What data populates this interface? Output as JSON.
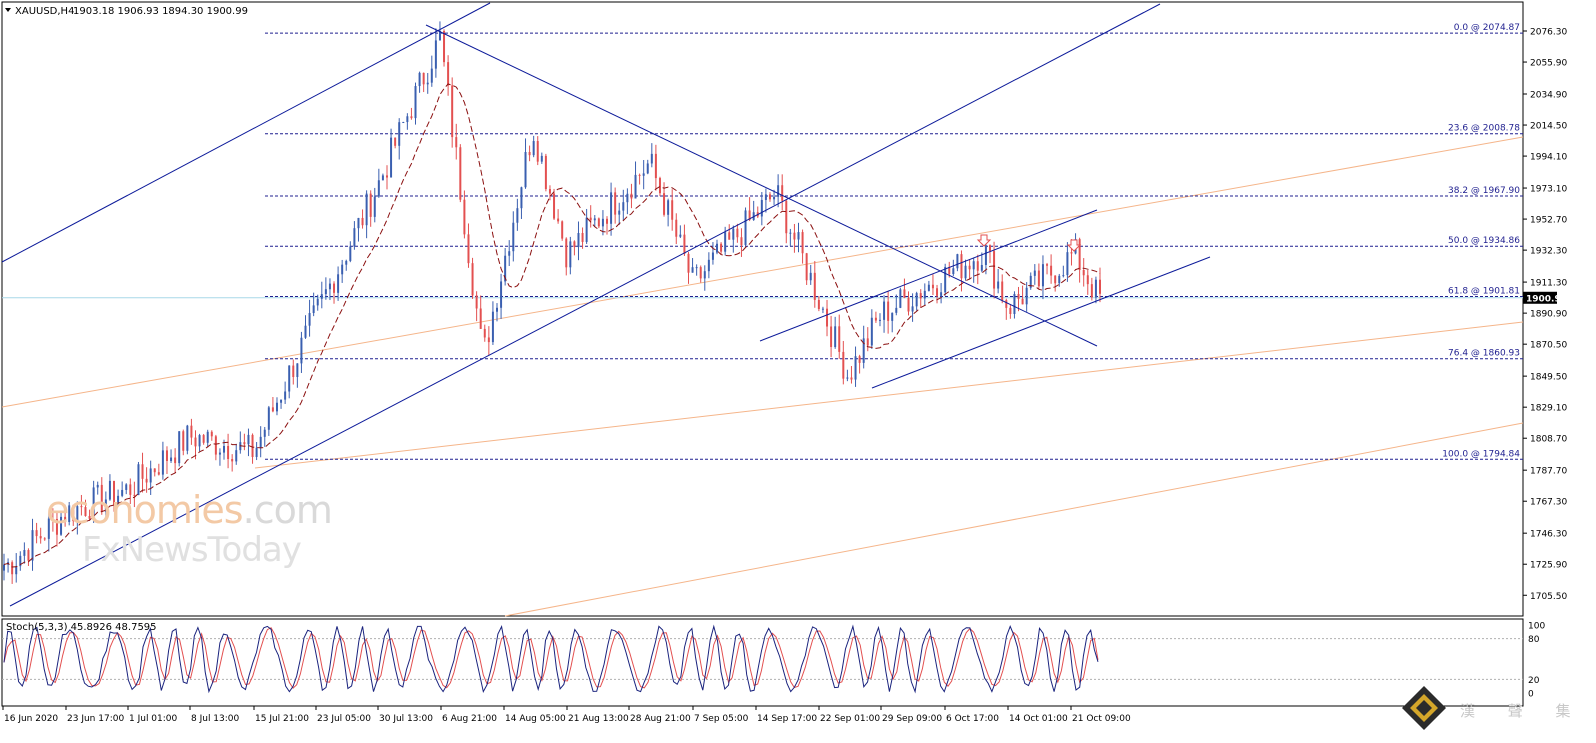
{
  "header": {
    "symbol": "XAUUSD,H4",
    "ohlc": "1903.18 1906.93 1894.30 1900.99"
  },
  "chart_data": {
    "type": "candlestick",
    "symbol": "XAUUSD",
    "timeframe": "H4",
    "last_price": "1900.99",
    "price_axis_labels": [
      "2076.30",
      "2055.90",
      "2034.90",
      "2014.50",
      "1994.10",
      "1973.10",
      "1952.70",
      "1932.30",
      "1911.30",
      "1890.90",
      "1870.50",
      "1849.50",
      "1829.10",
      "1808.70",
      "1787.70",
      "1767.30",
      "1746.30",
      "1725.90",
      "1705.50"
    ],
    "time_axis_labels": [
      "16 Jun 2020",
      "23 Jun 17:00",
      "1 Jul 01:00",
      "8 Jul 13:00",
      "15 Jul 21:00",
      "23 Jul 05:00",
      "30 Jul 13:00",
      "6 Aug 21:00",
      "14 Aug 05:00",
      "21 Aug 13:00",
      "28 Aug 21:00",
      "7 Sep 05:00",
      "14 Sep 17:00",
      "22 Sep 01:00",
      "29 Sep 09:00",
      "6 Oct 17:00",
      "14 Oct 01:00",
      "21 Oct 09:00"
    ],
    "fibonacci_levels": [
      {
        "label": "0.0 @ 2074.87",
        "level": 0.0,
        "price": 2074.87
      },
      {
        "label": "23.6 @ 2008.78",
        "level": 23.6,
        "price": 2008.78
      },
      {
        "label": "38.2 @ 1967.90",
        "level": 38.2,
        "price": 1967.9
      },
      {
        "label": "50.0 @ 1934.86",
        "level": 50.0,
        "price": 1934.86
      },
      {
        "label": "61.8 @ 1901.81",
        "level": 61.8,
        "price": 1901.81
      },
      {
        "label": "76.4 @ 1860.93",
        "level": 76.4,
        "price": 1860.93
      },
      {
        "label": "100.0 @ 1794.84",
        "level": 100.0,
        "price": 1794.84
      }
    ],
    "key_points": [
      {
        "time": "16 Jun 2020",
        "price": 1725.9
      },
      {
        "time": "23 Jun 17:00",
        "price": 1760
      },
      {
        "time": "1 Jul 01:00",
        "price": 1775
      },
      {
        "time": "8 Jul 13:00",
        "price": 1810
      },
      {
        "time": "15 Jul 21:00",
        "price": 1800
      },
      {
        "time": "23 Jul 05:00",
        "price": 1890
      },
      {
        "time": "30 Jul 13:00",
        "price": 1975
      },
      {
        "time": "6 Aug 06:00",
        "price": 2072
      },
      {
        "time": "11 Aug 20:00",
        "price": 1862
      },
      {
        "time": "18 Aug 12:00",
        "price": 2013
      },
      {
        "time": "21 Aug 13:00",
        "price": 1930
      },
      {
        "time": "1 Sep 08:00",
        "price": 1990
      },
      {
        "time": "7 Sep 05:00",
        "price": 1910
      },
      {
        "time": "14 Sep 17:00",
        "price": 1970
      },
      {
        "time": "22 Sep 01:00",
        "price": 1900
      },
      {
        "time": "24 Sep 12:00",
        "price": 1850
      },
      {
        "time": "29 Sep 09:00",
        "price": 1890
      },
      {
        "time": "6 Oct 17:00",
        "price": 1932
      },
      {
        "time": "14 Oct 01:00",
        "price": 1895
      },
      {
        "time": "21 Oct 09:00",
        "price": 1930
      },
      {
        "time": "23 Oct 16:00",
        "price": 1900.99
      }
    ],
    "stochastic": {
      "label": "Stoch(5,3,3) 45.8926 48.7595",
      "main": 45.8926,
      "signal": 48.7595,
      "levels": [
        80,
        20
      ],
      "axis_labels": [
        "100",
        "80",
        "20",
        "0"
      ]
    },
    "colors": {
      "bull_candle": "#3a5fb0",
      "bear_candle": "#e35050",
      "fib_lines": "#1f1f8f",
      "trend_lines": "#0d1b9a",
      "moving_average": "#8b1010",
      "regression_line": "#f5b58a",
      "current_price_line": "#a8d8e8"
    },
    "grid": false
  },
  "watermark": {
    "line1_a": "economies",
    "line1_b": ".com",
    "line2": "FxNewsToday"
  },
  "corner_logo": {
    "text": "漢 聲 集 團"
  }
}
